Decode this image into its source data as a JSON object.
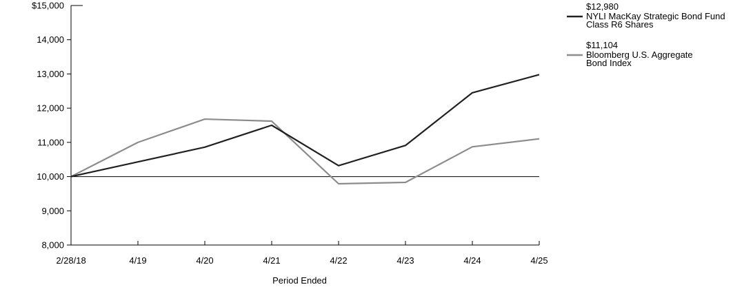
{
  "chart_data": {
    "type": "line",
    "xlabel": "Period Ended",
    "ylabel": "",
    "categories": [
      "2/28/18",
      "4/19",
      "4/20",
      "4/21",
      "4/22",
      "4/23",
      "4/24",
      "4/25"
    ],
    "ylim": [
      8000,
      15000
    ],
    "yticks": [
      {
        "value": 8000,
        "label": "8,000"
      },
      {
        "value": 9000,
        "label": "9,000"
      },
      {
        "value": 10000,
        "label": "10,000"
      },
      {
        "value": 11000,
        "label": "11,000"
      },
      {
        "value": 12000,
        "label": "12,000"
      },
      {
        "value": 13000,
        "label": "13,000"
      },
      {
        "value": 14000,
        "label": "14,000"
      },
      {
        "value": 15000,
        "label": "$15,000"
      }
    ],
    "reference_line": 10000,
    "grid": false,
    "legend_position": "top-right",
    "series": [
      {
        "name": "NYLI MacKay Strategic Bond Fund Class R6 Shares",
        "name_lines": [
          "NYLI MacKay Strategic Bond Fund",
          "Class R6 Shares"
        ],
        "ending_value_label": "$12,980",
        "color": "#231f20",
        "values": [
          10000,
          10430,
          10860,
          11500,
          10320,
          10910,
          12450,
          12980
        ]
      },
      {
        "name": "Bloomberg U.S. Aggregate Bond Index",
        "name_lines": [
          "Bloomberg  U.S. Aggregate",
          "Bond Index"
        ],
        "ending_value_label": "$11,104",
        "color": "#8c8c8c",
        "values": [
          10000,
          11000,
          11680,
          11620,
          9790,
          9830,
          10870,
          11104
        ]
      }
    ]
  }
}
